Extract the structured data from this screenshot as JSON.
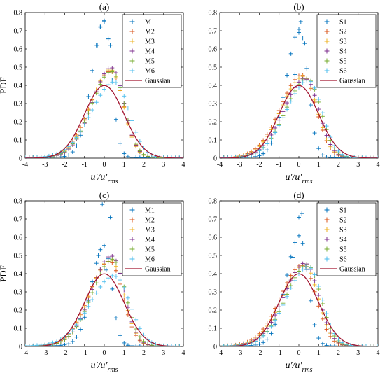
{
  "figure": {
    "description_label": ""
  },
  "colors": {
    "series": [
      "#0072BD",
      "#D95319",
      "#EDB120",
      "#7E2F8E",
      "#77AC30",
      "#4DBEEE"
    ],
    "gaussian": "#A2142F"
  },
  "chart_data": [
    {
      "type": "scatter",
      "title": "(a)",
      "xlabel": "u′/u′",
      "xlabel_sub": "rms",
      "ylabel": "PDF",
      "xlim": [
        -4,
        4
      ],
      "ylim": [
        0,
        0.8
      ],
      "xticks": [
        "-4",
        "-3",
        "-2",
        "-1",
        "0",
        "1",
        "2",
        "3",
        "4"
      ],
      "yticks": [
        "0",
        "0.1",
        "0.2",
        "0.3",
        "0.4",
        "0.5",
        "0.6",
        "0.7",
        "0.8"
      ],
      "legend_position": "top-right",
      "marker": "+",
      "series": [
        {
          "name": "M1",
          "shape": {
            "type": "spike",
            "mu": 0.0,
            "sigma": 0.5,
            "peak": 0.75,
            "tail": 0.01
          },
          "extra_points": [
            [
              -0.35,
              0.62
            ],
            [
              -0.2,
              0.72
            ],
            [
              0.0,
              0.75
            ],
            [
              0.3,
              0.62
            ]
          ]
        },
        {
          "name": "M2",
          "shape": {
            "type": "skew",
            "mu": 0.35,
            "sigma": 0.85,
            "peak": 0.47,
            "tail": 0.01
          }
        },
        {
          "name": "M3",
          "shape": {
            "type": "skew",
            "mu": 0.35,
            "sigma": 0.82,
            "peak": 0.48,
            "tail": 0.01
          }
        },
        {
          "name": "M4",
          "shape": {
            "type": "skew",
            "mu": 0.4,
            "sigma": 0.8,
            "peak": 0.49,
            "tail": 0.012
          }
        },
        {
          "name": "M5",
          "shape": {
            "type": "skew",
            "mu": 0.4,
            "sigma": 0.83,
            "peak": 0.47,
            "tail": 0.01
          }
        },
        {
          "name": "M6",
          "shape": {
            "type": "skew",
            "mu": 0.55,
            "sigma": 0.95,
            "peak": 0.41,
            "tail": 0.012
          }
        },
        {
          "name": "Gaussian",
          "line": true,
          "shape": {
            "type": "gauss",
            "mu": 0.0,
            "sigma": 1.0
          }
        }
      ]
    },
    {
      "type": "scatter",
      "title": "(b)",
      "xlabel": "u′/u′",
      "xlabel_sub": "rms",
      "ylabel": "",
      "xlim": [
        -4,
        4
      ],
      "ylim": [
        0,
        0.8
      ],
      "xticks": [
        "-4",
        "-3",
        "-2",
        "-1",
        "0",
        "1",
        "2",
        "3",
        "4"
      ],
      "yticks": [
        "0",
        "0.1",
        "0.2",
        "0.3",
        "0.4",
        "0.5",
        "0.6",
        "0.7",
        "0.8"
      ],
      "legend_position": "top-right",
      "marker": "+",
      "series": [
        {
          "name": "S1",
          "shape": {
            "type": "spike",
            "mu": 0.05,
            "sigma": 0.55,
            "peak": 0.7,
            "tail": 0.01
          },
          "extra_points": [
            [
              -0.2,
              0.46
            ],
            [
              0.0,
              0.69
            ],
            [
              0.1,
              0.75
            ],
            [
              0.3,
              0.63
            ]
          ]
        },
        {
          "name": "S2",
          "shape": {
            "type": "skew",
            "mu": 0.2,
            "sigma": 0.9,
            "peak": 0.45,
            "tail": 0.01
          }
        },
        {
          "name": "S3",
          "shape": {
            "type": "skew",
            "mu": 0.25,
            "sigma": 0.9,
            "peak": 0.44,
            "tail": 0.01
          }
        },
        {
          "name": "S4",
          "shape": {
            "type": "skew",
            "mu": 0.35,
            "sigma": 0.88,
            "peak": 0.43,
            "tail": 0.01
          }
        },
        {
          "name": "S5",
          "shape": {
            "type": "skew",
            "mu": 0.45,
            "sigma": 0.88,
            "peak": 0.43,
            "tail": 0.01
          }
        },
        {
          "name": "S6",
          "shape": {
            "type": "skew",
            "mu": 0.5,
            "sigma": 0.9,
            "peak": 0.42,
            "tail": 0.01
          }
        },
        {
          "name": "Gaussian",
          "line": true,
          "shape": {
            "type": "gauss",
            "mu": 0.0,
            "sigma": 1.0
          }
        }
      ]
    },
    {
      "type": "scatter",
      "title": "(c)",
      "xlabel": "u′/u′",
      "xlabel_sub": "rms",
      "ylabel": "PDF",
      "xlim": [
        -4,
        4
      ],
      "ylim": [
        0,
        0.8
      ],
      "xticks": [
        "-4",
        "-3",
        "-2",
        "-1",
        "0",
        "1",
        "2",
        "3",
        "4"
      ],
      "yticks": [
        "0",
        "0.1",
        "0.2",
        "0.3",
        "0.4",
        "0.5",
        "0.6",
        "0.7",
        "0.8"
      ],
      "legend_position": "top-right",
      "marker": "+",
      "series": [
        {
          "name": "M1",
          "shape": {
            "type": "spike",
            "mu": 0.0,
            "sigma": 0.5,
            "peak": 0.55,
            "tail": 0.01
          },
          "extra_points": [
            [
              -0.3,
              0.5
            ],
            [
              -0.1,
              0.78
            ],
            [
              0.3,
              0.71
            ],
            [
              0.1,
              0.42
            ]
          ]
        },
        {
          "name": "M2",
          "shape": {
            "type": "skew",
            "mu": 0.3,
            "sigma": 0.85,
            "peak": 0.46,
            "tail": 0.01
          }
        },
        {
          "name": "M3",
          "shape": {
            "type": "skew",
            "mu": 0.35,
            "sigma": 0.85,
            "peak": 0.47,
            "tail": 0.01
          }
        },
        {
          "name": "M4",
          "shape": {
            "type": "skew",
            "mu": 0.4,
            "sigma": 0.82,
            "peak": 0.49,
            "tail": 0.012
          }
        },
        {
          "name": "M5",
          "shape": {
            "type": "skew",
            "mu": 0.45,
            "sigma": 0.85,
            "peak": 0.47,
            "tail": 0.01
          }
        },
        {
          "name": "M6",
          "shape": {
            "type": "skew",
            "mu": 0.55,
            "sigma": 1.0,
            "peak": 0.38,
            "tail": 0.012
          }
        },
        {
          "name": "Gaussian",
          "line": true,
          "shape": {
            "type": "gauss",
            "mu": 0.0,
            "sigma": 1.0
          }
        }
      ]
    },
    {
      "type": "scatter",
      "title": "(d)",
      "xlabel": "u′/u′",
      "xlabel_sub": "rms",
      "ylabel": "",
      "xlim": [
        -4,
        4
      ],
      "ylim": [
        0,
        0.8
      ],
      "xticks": [
        "-4",
        "-3",
        "-2",
        "-1",
        "0",
        "1",
        "2",
        "3",
        "4"
      ],
      "yticks": [
        "0",
        "0.1",
        "0.2",
        "0.3",
        "0.4",
        "0.5",
        "0.6",
        "0.7",
        "0.8"
      ],
      "legend_position": "top-right",
      "marker": "+",
      "series": [
        {
          "name": "S1",
          "shape": {
            "type": "spike",
            "mu": 0.05,
            "sigma": 0.55,
            "peak": 0.6,
            "tail": 0.01
          },
          "extra_points": [
            [
              -0.3,
              0.49
            ],
            [
              0.0,
              0.71
            ],
            [
              0.15,
              0.73
            ],
            [
              0.35,
              0.44
            ]
          ]
        },
        {
          "name": "S2",
          "shape": {
            "type": "skew",
            "mu": 0.2,
            "sigma": 0.9,
            "peak": 0.44,
            "tail": 0.01
          }
        },
        {
          "name": "S3",
          "shape": {
            "type": "skew",
            "mu": 0.3,
            "sigma": 0.9,
            "peak": 0.44,
            "tail": 0.01
          }
        },
        {
          "name": "S4",
          "shape": {
            "type": "skew",
            "mu": 0.35,
            "sigma": 0.88,
            "peak": 0.45,
            "tail": 0.01
          }
        },
        {
          "name": "S5",
          "shape": {
            "type": "skew",
            "mu": 0.45,
            "sigma": 0.88,
            "peak": 0.44,
            "tail": 0.01
          }
        },
        {
          "name": "S6",
          "shape": {
            "type": "skew",
            "mu": 0.5,
            "sigma": 0.9,
            "peak": 0.43,
            "tail": 0.01
          }
        },
        {
          "name": "Gaussian",
          "line": true,
          "shape": {
            "type": "gauss",
            "mu": 0.0,
            "sigma": 1.0
          }
        }
      ]
    }
  ]
}
